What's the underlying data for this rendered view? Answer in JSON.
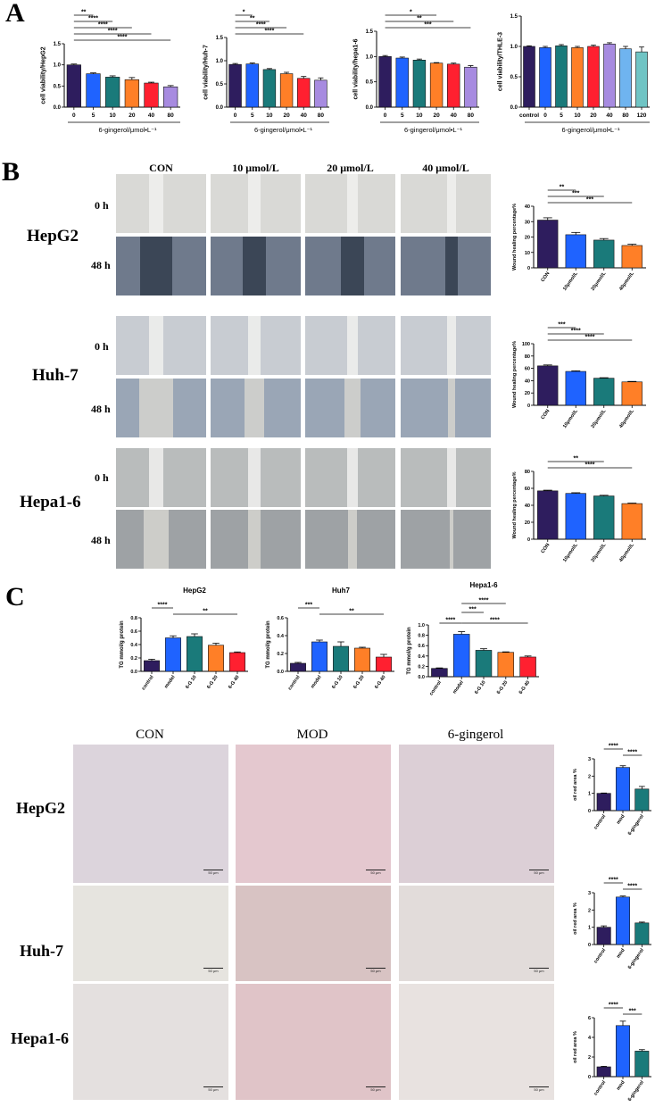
{
  "panels": {
    "a": "A",
    "b": "B",
    "c": "C"
  },
  "chart_data": [
    {
      "id": "viab_hepg2",
      "type": "bar",
      "ylabel": "cell viability/HepG2",
      "xlabel": "6-gingerol/μmol•L⁻¹",
      "categories": [
        "0",
        "5",
        "10",
        "20",
        "40",
        "80"
      ],
      "values": [
        1.0,
        0.79,
        0.71,
        0.65,
        0.57,
        0.48
      ],
      "errors": [
        0.02,
        0.02,
        0.03,
        0.05,
        0.02,
        0.03
      ],
      "ylim": [
        0,
        1.5
      ],
      "yticks": [
        "0.0",
        "0.5",
        "1.0",
        "1.5"
      ],
      "colors": [
        "#2e1d5e",
        "#1f63ff",
        "#1a7a7a",
        "#ff7f27",
        "#ff2030",
        "#a78be0"
      ],
      "sig": [
        [
          "**",
          0,
          1
        ],
        [
          "****",
          0,
          2
        ],
        [
          "****",
          0,
          3
        ],
        [
          "****",
          0,
          4
        ],
        [
          "****",
          0,
          5
        ]
      ]
    },
    {
      "id": "viab_huh7",
      "type": "bar",
      "ylabel": "cell viability/Huh-7",
      "xlabel": "6-gingerol/μmol•L⁻¹",
      "categories": [
        "0",
        "5",
        "10",
        "20",
        "40",
        "80"
      ],
      "values": [
        0.92,
        0.93,
        0.81,
        0.72,
        0.62,
        0.58
      ],
      "errors": [
        0.02,
        0.02,
        0.02,
        0.03,
        0.04,
        0.05
      ],
      "ylim": [
        0,
        1.5
      ],
      "yticks": [
        "0.0",
        "0.5",
        "1.0",
        "1.5"
      ],
      "colors": [
        "#2e1d5e",
        "#1f63ff",
        "#1a7a7a",
        "#ff7f27",
        "#ff2030",
        "#a78be0"
      ],
      "sig": [
        [
          "*",
          0,
          1
        ],
        [
          "**",
          0,
          2
        ],
        [
          "****",
          0,
          3
        ],
        [
          "****",
          0,
          4
        ]
      ]
    },
    {
      "id": "viab_hepa16",
      "type": "bar",
      "ylabel": "cell viability/hepa1-6",
      "xlabel": "6-gingerol/μmol•L⁻¹",
      "categories": [
        "0",
        "5",
        "10",
        "20",
        "40",
        "80"
      ],
      "values": [
        1.0,
        0.97,
        0.93,
        0.87,
        0.85,
        0.79
      ],
      "errors": [
        0.02,
        0.02,
        0.02,
        0.01,
        0.02,
        0.03
      ],
      "ylim": [
        0,
        1.5
      ],
      "yticks": [
        "0.0",
        "0.5",
        "1.0",
        "1.5"
      ],
      "colors": [
        "#2e1d5e",
        "#1f63ff",
        "#1a7a7a",
        "#ff7f27",
        "#ff2030",
        "#a78be0"
      ],
      "sig": [
        [
          "*",
          0,
          3
        ],
        [
          "**",
          0,
          4
        ],
        [
          "***",
          0,
          5
        ]
      ]
    },
    {
      "id": "viab_thle3",
      "type": "bar",
      "ylabel": "cell viability/THLE-3",
      "xlabel": "6-gingerol/μmol•L⁻¹",
      "categories": [
        "control",
        "0",
        "5",
        "10",
        "20",
        "40",
        "80",
        "120"
      ],
      "values": [
        1.0,
        0.98,
        1.01,
        0.98,
        1.0,
        1.04,
        0.96,
        0.91
      ],
      "errors": [
        0.01,
        0.02,
        0.02,
        0.02,
        0.02,
        0.02,
        0.04,
        0.08
      ],
      "ylim": [
        0,
        1.5
      ],
      "yticks": [
        "0.0",
        "0.5",
        "1.0",
        "1.5"
      ],
      "colors": [
        "#2e1d5e",
        "#1f63ff",
        "#1a7a7a",
        "#ff7f27",
        "#ff2030",
        "#a78be0",
        "#6fb4f0",
        "#6fc4c4"
      ],
      "sig": []
    },
    {
      "id": "wound_hepg2",
      "type": "bar",
      "ylabel": "Wound healing percentage%",
      "xlabel": "",
      "categories": [
        "CON",
        "10μmol/L",
        "20μmol/L",
        "40μmol/L"
      ],
      "values": [
        31,
        21.5,
        18,
        14.5
      ],
      "errors": [
        1.5,
        1.5,
        1.0,
        0.8
      ],
      "ylim": [
        0,
        40
      ],
      "yticks": [
        "0",
        "10",
        "20",
        "30",
        "40"
      ],
      "colors": [
        "#2e1d5e",
        "#1f63ff",
        "#1a7a7a",
        "#ff7f27"
      ],
      "sig": [
        [
          "**",
          0,
          1
        ],
        [
          "***",
          0,
          2
        ],
        [
          "***",
          0,
          3
        ]
      ]
    },
    {
      "id": "wound_huh7",
      "type": "bar",
      "ylabel": "Wound healing percentage%",
      "xlabel": "",
      "categories": [
        "CON",
        "10μmol/L",
        "20μmol/L",
        "40μmol/L"
      ],
      "values": [
        64,
        55,
        44,
        38
      ],
      "errors": [
        1.5,
        1.0,
        0.8,
        0.8
      ],
      "ylim": [
        0,
        100
      ],
      "yticks": [
        "0",
        "20",
        "40",
        "60",
        "80",
        "100"
      ],
      "colors": [
        "#2e1d5e",
        "#1f63ff",
        "#1a7a7a",
        "#ff7f27"
      ],
      "sig": [
        [
          "***",
          0,
          1
        ],
        [
          "****",
          0,
          2
        ],
        [
          "****",
          0,
          3
        ]
      ]
    },
    {
      "id": "wound_hepa16",
      "type": "bar",
      "ylabel": "Wound healing percentage%",
      "xlabel": "",
      "categories": [
        "CON",
        "10μmol/L",
        "20μmol/L",
        "40μmol/L"
      ],
      "values": [
        57,
        54,
        51,
        42
      ],
      "errors": [
        0.8,
        0.8,
        0.8,
        0.6
      ],
      "ylim": [
        0,
        80
      ],
      "yticks": [
        "0",
        "20",
        "40",
        "60",
        "80"
      ],
      "colors": [
        "#2e1d5e",
        "#1f63ff",
        "#1a7a7a",
        "#ff7f27"
      ],
      "sig": [
        [
          "**",
          0,
          2
        ],
        [
          "****",
          0,
          3
        ]
      ]
    },
    {
      "id": "tg_hepg2",
      "type": "bar",
      "title": "HepG2",
      "ylabel": "TG mmol/g protein",
      "xlabel": "",
      "categories": [
        "control",
        "model",
        "6-G 10",
        "6-G 20",
        "6-G 40"
      ],
      "values": [
        0.16,
        0.5,
        0.52,
        0.39,
        0.28
      ],
      "errors": [
        0.02,
        0.03,
        0.04,
        0.03,
        0.01
      ],
      "ylim": [
        0,
        0.8
      ],
      "yticks": [
        "0.0",
        "0.2",
        "0.4",
        "0.6",
        "0.8"
      ],
      "colors": [
        "#2e1d5e",
        "#1f63ff",
        "#1a7a7a",
        "#ff7f27",
        "#ff2030"
      ],
      "sig": [
        [
          "****",
          0,
          1
        ],
        [
          "**",
          1,
          4
        ]
      ]
    },
    {
      "id": "tg_huh7",
      "type": "bar",
      "title": "Huh7",
      "ylabel": "TG mmol/g protein",
      "xlabel": "",
      "categories": [
        "control",
        "model",
        "6-G 10",
        "6-G 20",
        "6-G 40"
      ],
      "values": [
        0.09,
        0.33,
        0.28,
        0.26,
        0.16
      ],
      "errors": [
        0.01,
        0.02,
        0.05,
        0.01,
        0.03
      ],
      "ylim": [
        0,
        0.6
      ],
      "yticks": [
        "0.0",
        "0.2",
        "0.4",
        "0.6"
      ],
      "colors": [
        "#2e1d5e",
        "#1f63ff",
        "#1a7a7a",
        "#ff7f27",
        "#ff2030"
      ],
      "sig": [
        [
          "***",
          0,
          1
        ],
        [
          "**",
          1,
          4
        ]
      ]
    },
    {
      "id": "tg_hepa16",
      "type": "bar",
      "title": "Hepa1-6",
      "ylabel": "TG mmol/g protein",
      "xlabel": "",
      "categories": [
        "control",
        "model",
        "6-G 10",
        "6-G 20",
        "6-G 40"
      ],
      "values": [
        0.16,
        0.82,
        0.51,
        0.47,
        0.38
      ],
      "errors": [
        0.01,
        0.05,
        0.03,
        0.01,
        0.02
      ],
      "ylim": [
        0,
        1.0
      ],
      "yticks": [
        "0.0",
        "0.2",
        "0.4",
        "0.6",
        "0.8",
        "1.0"
      ],
      "colors": [
        "#2e1d5e",
        "#1f63ff",
        "#1a7a7a",
        "#ff7f27",
        "#ff2030"
      ],
      "sig": [
        [
          "****",
          0,
          1
        ],
        [
          "****",
          1,
          4
        ],
        [
          "***",
          1,
          2
        ],
        [
          "****",
          1,
          3
        ]
      ]
    },
    {
      "id": "oil_hepg2",
      "type": "bar",
      "ylabel": "oil red area %",
      "xlabel": "",
      "categories": [
        "control",
        "mod",
        "6-gingerol"
      ],
      "values": [
        1.0,
        2.5,
        1.25
      ],
      "errors": [
        0.02,
        0.1,
        0.15
      ],
      "ylim": [
        0,
        3
      ],
      "yticks": [
        "0",
        "1",
        "2",
        "3"
      ],
      "colors": [
        "#2e1d5e",
        "#1f63ff",
        "#1a7a7a"
      ],
      "sig": [
        [
          "****",
          0,
          1
        ],
        [
          "****",
          1,
          2
        ]
      ]
    },
    {
      "id": "oil_huh7",
      "type": "bar",
      "ylabel": "oil red area %",
      "xlabel": "",
      "categories": [
        "control",
        "mod",
        "6-gingerol"
      ],
      "values": [
        1.0,
        2.75,
        1.25
      ],
      "errors": [
        0.08,
        0.06,
        0.05
      ],
      "ylim": [
        0,
        3
      ],
      "yticks": [
        "0",
        "1",
        "2",
        "3"
      ],
      "colors": [
        "#2e1d5e",
        "#1f63ff",
        "#1a7a7a"
      ],
      "sig": [
        [
          "****",
          0,
          1
        ],
        [
          "****",
          1,
          2
        ]
      ]
    },
    {
      "id": "oil_hepa16",
      "type": "bar",
      "ylabel": "oil red area %",
      "xlabel": "",
      "categories": [
        "control",
        "mod",
        "6-gingerol"
      ],
      "values": [
        1.0,
        5.2,
        2.6
      ],
      "errors": [
        0.05,
        0.45,
        0.15
      ],
      "ylim": [
        0,
        6
      ],
      "yticks": [
        "0",
        "2",
        "4",
        "6"
      ],
      "colors": [
        "#2e1d5e",
        "#1f63ff",
        "#1a7a7a"
      ],
      "sig": [
        [
          "****",
          0,
          1
        ],
        [
          "***",
          1,
          2
        ]
      ]
    }
  ],
  "wound": {
    "columns": [
      "CON",
      "10 μmol/L",
      "20 μmol/L",
      "40 μmol/L"
    ],
    "rows": [
      "HepG2",
      "Huh-7",
      "Hepa1-6"
    ],
    "times": [
      "0 h",
      "48 h"
    ]
  },
  "oil": {
    "columns": [
      "CON",
      "MOD",
      "6-gingerol"
    ],
    "rows": [
      "HepG2",
      "Huh-7",
      "Hepa1-6"
    ],
    "scale_label": "50 μm"
  }
}
